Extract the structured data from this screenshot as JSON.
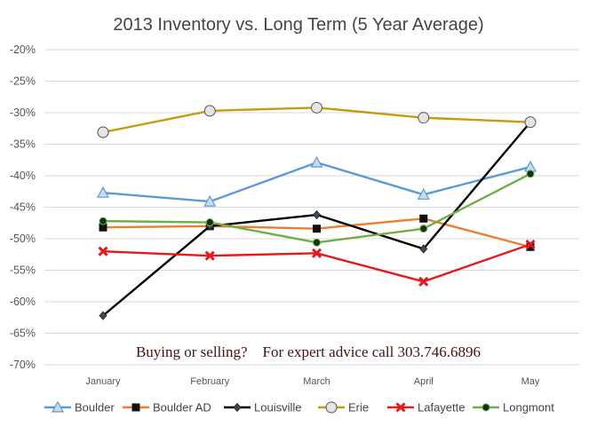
{
  "chart_data": {
    "type": "line",
    "title": "2013 Inventory vs. Long Term (5 Year Average)",
    "categories": [
      "January",
      "February",
      "March",
      "April",
      "May"
    ],
    "ylim": [
      -70,
      -20
    ],
    "yticks": [
      -20,
      -25,
      -30,
      -35,
      -40,
      -45,
      -50,
      -55,
      -60,
      -65,
      -70
    ],
    "ytick_labels": [
      "-20%",
      "-25%",
      "-30%",
      "-35%",
      "-40%",
      "-45%",
      "-50%",
      "-55%",
      "-60%",
      "-65%",
      "-70%"
    ],
    "grid": true,
    "legend_position": "bottom",
    "annotation": "Buying or selling?    For expert advice call 303.746.6896",
    "series": [
      {
        "name": "Boulder",
        "values": [
          -42.7,
          -44.1,
          -37.9,
          -43.0,
          -38.6
        ],
        "color": "#5b9bd5",
        "marker": "triangle"
      },
      {
        "name": "Boulder AD",
        "values": [
          -48.2,
          -48.0,
          -48.4,
          -46.8,
          -51.3
        ],
        "color": "#ed7d31",
        "marker": "square"
      },
      {
        "name": "Louisville",
        "values": [
          -62.2,
          -48.0,
          -46.2,
          -51.6,
          -31.5
        ],
        "color": "#000000",
        "marker": "diamond"
      },
      {
        "name": "Erie",
        "values": [
          -33.1,
          -29.7,
          -29.2,
          -30.8,
          -31.5
        ],
        "color": "#c49a0e",
        "marker": "circle-open"
      },
      {
        "name": "Lafayette",
        "values": [
          -52.0,
          -52.7,
          -52.3,
          -56.8,
          -50.9
        ],
        "color": "#e41a1c",
        "marker": "x"
      },
      {
        "name": "Longmont",
        "values": [
          -47.2,
          -47.4,
          -50.6,
          -48.4,
          -39.7
        ],
        "color": "#70ad47",
        "marker": "circle-dark"
      }
    ]
  }
}
